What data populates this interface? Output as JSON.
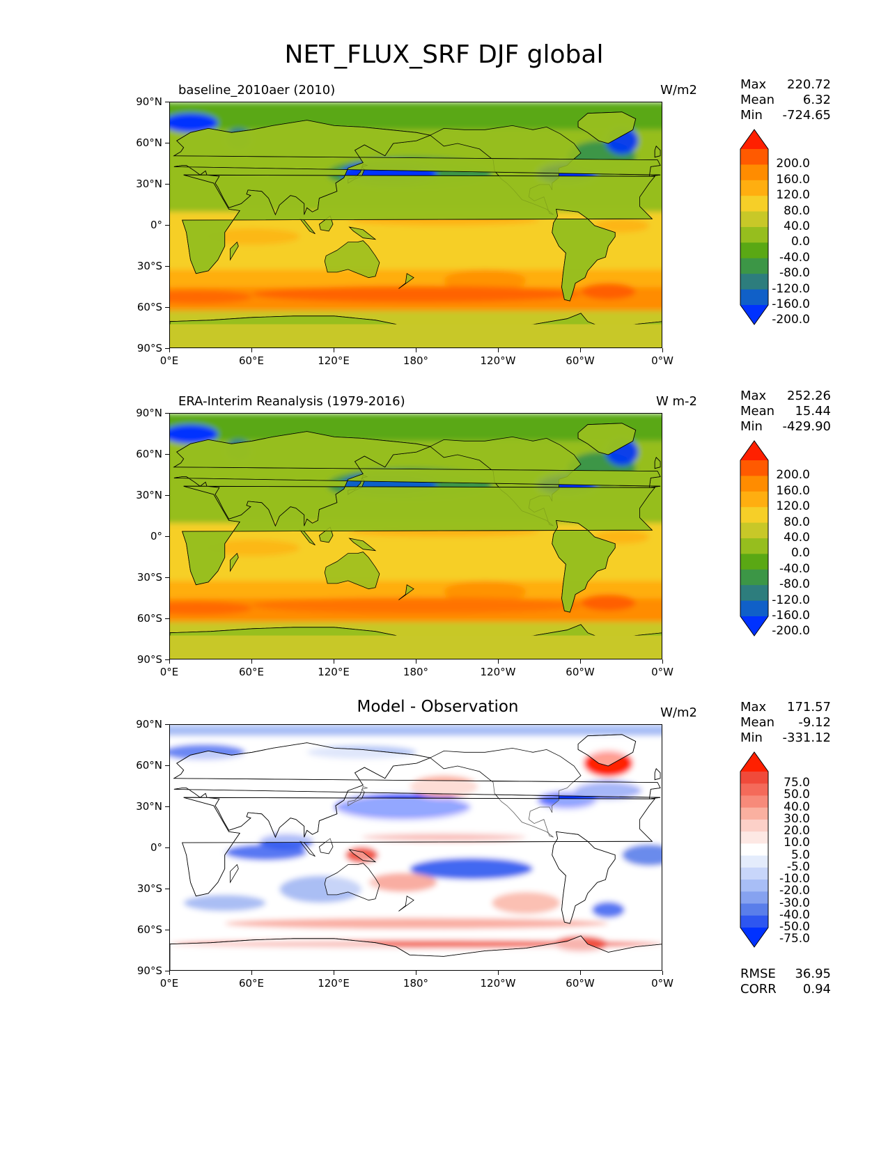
{
  "figure_title": "NET_FLUX_SRF DJF global",
  "x_ticks": [
    "0°E",
    "60°E",
    "120°E",
    "180°",
    "120°W",
    "60°W",
    "0°W"
  ],
  "y_ticks": [
    "90°N",
    "60°N",
    "30°N",
    "0°",
    "30°S",
    "60°S",
    "90°S"
  ],
  "panels": [
    {
      "title": "baseline_2010aer (2010)",
      "units": "W/m2",
      "stats": {
        "max_label": "Max",
        "max": "220.72",
        "mean_label": "Mean",
        "mean": "6.32",
        "min_label": "Min",
        "min": "-724.65"
      },
      "colorbar": {
        "levels": [
          "200.0",
          "160.0",
          "120.0",
          "80.0",
          "40.0",
          "0.0",
          "-40.0",
          "-80.0",
          "-120.0",
          "-160.0",
          "-200.0"
        ],
        "colors": [
          "#ff2000",
          "#ff5a00",
          "#ff8c00",
          "#ffae10",
          "#f6cf28",
          "#c8c828",
          "#96be1e",
          "#5aa814",
          "#3c9646",
          "#2d7d7d",
          "#1060c8",
          "#0032ff"
        ]
      }
    },
    {
      "title": "ERA-Interim Reanalysis (1979-2016)",
      "units": "W m-2",
      "stats": {
        "max_label": "Max",
        "max": "252.26",
        "mean_label": "Mean",
        "mean": "15.44",
        "min_label": "Min",
        "min": "-429.90"
      },
      "colorbar": {
        "levels": [
          "200.0",
          "160.0",
          "120.0",
          "80.0",
          "40.0",
          "0.0",
          "-40.0",
          "-80.0",
          "-120.0",
          "-160.0",
          "-200.0"
        ],
        "colors": [
          "#ff2000",
          "#ff5a00",
          "#ff8c00",
          "#ffae10",
          "#f6cf28",
          "#c8c828",
          "#96be1e",
          "#5aa814",
          "#3c9646",
          "#2d7d7d",
          "#1060c8",
          "#0032ff"
        ]
      }
    },
    {
      "title": "Model - Observation",
      "units": "W/m2",
      "stats": {
        "max_label": "Max",
        "max": "171.57",
        "mean_label": "Mean",
        "mean": "-9.12",
        "min_label": "Min",
        "min": "-331.12"
      },
      "metrics": {
        "rmse_label": "RMSE",
        "rmse": "36.95",
        "corr_label": "CORR",
        "corr": "0.94"
      },
      "colorbar": {
        "levels": [
          "75.0",
          "50.0",
          "40.0",
          "30.0",
          "20.0",
          "10.0",
          "5.0",
          "-5.0",
          "-10.0",
          "-20.0",
          "-30.0",
          "-40.0",
          "-50.0",
          "-75.0"
        ],
        "colors": [
          "#ff2000",
          "#f04a3a",
          "#f46a5a",
          "#f78a7a",
          "#fab0a0",
          "#fcd0c8",
          "#fde8e4",
          "#ffffff",
          "#e4ecfc",
          "#c8d6fa",
          "#a8bef6",
          "#86a2f0",
          "#5a7eea",
          "#2e56f0",
          "#0032ff"
        ]
      }
    }
  ]
}
